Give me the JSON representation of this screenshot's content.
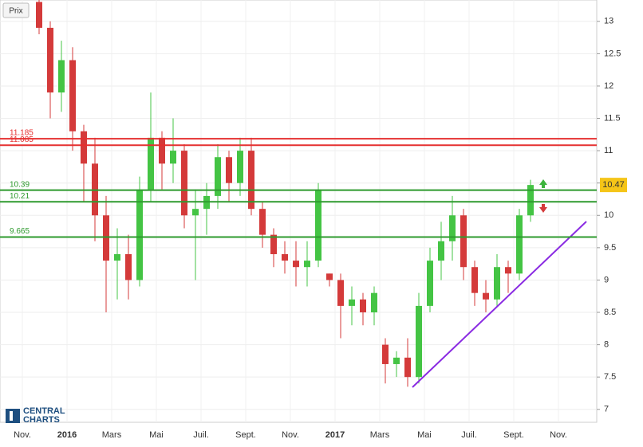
{
  "chart_data": {
    "type": "candlestick",
    "button": "Prix",
    "logo": [
      "CENTRAL",
      "CHARTS"
    ],
    "categories": [
      null,
      null,
      "Nov.",
      null,
      null,
      null,
      "2016",
      null,
      null,
      null,
      "Mars",
      null,
      null,
      null,
      "Mai",
      null,
      null,
      null,
      "Juil.",
      null,
      null,
      null,
      "Sept.",
      null,
      null,
      null,
      "Nov.",
      null,
      null,
      null,
      "2017",
      null,
      null,
      null,
      "Mars",
      null,
      null,
      null,
      "Mai",
      null,
      null,
      null,
      "Juil.",
      null,
      null,
      null,
      "Sept.",
      null,
      null,
      null,
      "Nov.",
      null,
      null
    ],
    "open": [
      null,
      null,
      null,
      13.3,
      12.9,
      11.9,
      12.4,
      11.3,
      10.8,
      10.0,
      9.3,
      9.4,
      9.0,
      10.4,
      11.2,
      10.8,
      11.0,
      10.0,
      10.1,
      10.3,
      10.9,
      10.5,
      11.0,
      10.1,
      9.7,
      9.4,
      9.3,
      9.2,
      9.3,
      9.1,
      9.0,
      8.6,
      8.7,
      8.5,
      8.0,
      7.7,
      7.8,
      7.5,
      8.6,
      9.3,
      9.6,
      10.0,
      9.2,
      8.8,
      8.7,
      9.2,
      9.1,
      10.0,
      null,
      null,
      null,
      null,
      null
    ],
    "high": [
      null,
      null,
      null,
      13.33,
      13.0,
      12.7,
      12.6,
      11.4,
      11.2,
      10.3,
      9.8,
      9.7,
      10.6,
      11.9,
      11.3,
      11.5,
      11.1,
      10.4,
      10.5,
      11.1,
      11.0,
      11.2,
      11.2,
      10.2,
      9.8,
      9.6,
      9.6,
      9.6,
      10.5,
      9.1,
      9.1,
      8.9,
      8.8,
      8.9,
      8.1,
      7.9,
      8.1,
      8.8,
      9.5,
      9.9,
      10.3,
      10.1,
      9.3,
      9.0,
      9.4,
      9.3,
      10.1,
      10.55,
      null,
      null,
      null,
      null,
      null
    ],
    "low": [
      null,
      null,
      null,
      12.8,
      11.5,
      11.6,
      11.0,
      10.2,
      9.6,
      8.5,
      8.7,
      8.7,
      8.9,
      10.2,
      10.4,
      10.5,
      9.8,
      9.0,
      9.7,
      10.1,
      10.2,
      10.3,
      10.0,
      9.5,
      9.2,
      9.1,
      8.9,
      8.9,
      9.2,
      8.9,
      8.1,
      8.3,
      8.3,
      8.3,
      7.4,
      7.5,
      7.35,
      7.4,
      8.5,
      9.0,
      9.3,
      9.0,
      8.6,
      8.5,
      8.6,
      8.8,
      9.0,
      9.9,
      null,
      null,
      null,
      null,
      null
    ],
    "close": [
      null,
      null,
      null,
      12.9,
      11.9,
      12.4,
      11.3,
      10.8,
      10.0,
      9.3,
      9.4,
      9.0,
      10.4,
      11.2,
      10.8,
      11.0,
      10.0,
      10.1,
      10.3,
      10.9,
      10.5,
      11.0,
      10.1,
      9.7,
      9.4,
      9.3,
      9.2,
      9.3,
      10.4,
      9.0,
      8.6,
      8.7,
      8.5,
      8.8,
      7.7,
      7.8,
      7.5,
      8.6,
      9.3,
      9.6,
      10.0,
      9.2,
      8.8,
      8.7,
      9.2,
      9.1,
      10.0,
      10.47,
      null,
      null,
      null,
      null,
      null
    ],
    "up_color": "#44c444",
    "down_color": "#d43a3a",
    "last_price": 10.47,
    "levels": [
      {
        "value": 11.185,
        "color": "#e53030"
      },
      {
        "value": 11.085,
        "color": "#e53030"
      },
      {
        "value": 10.39,
        "color": "#2e9a2e"
      },
      {
        "value": 10.21,
        "color": "#2e9a2e"
      },
      {
        "value": 9.665,
        "color": "#2e9a2e"
      }
    ],
    "ylim": [
      6.8,
      13.33
    ],
    "yticks": [
      7,
      7.5,
      8,
      8.5,
      9,
      9.5,
      10,
      10.5,
      11,
      11.5,
      12,
      12.5,
      13
    ],
    "grid": true
  }
}
